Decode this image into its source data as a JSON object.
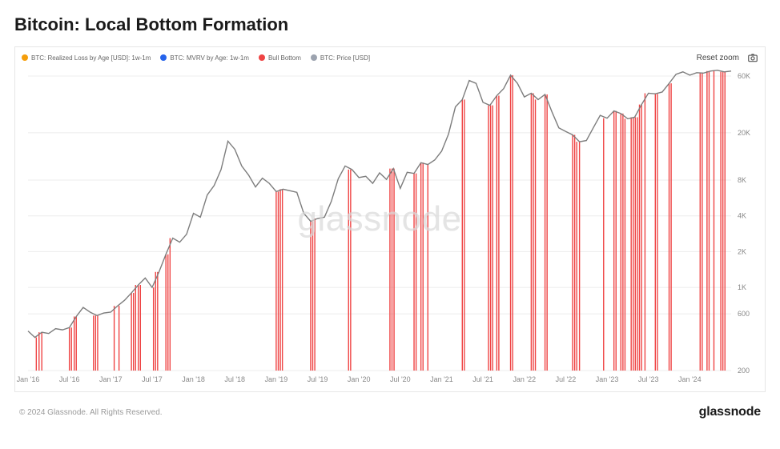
{
  "title": "Bitcoin: Local Bottom Formation",
  "watermark": "glassnode",
  "reset_zoom": "Reset zoom",
  "copyright": "© 2024 Glassnode. All Rights Reserved.",
  "brand": "glassnode",
  "legend": [
    {
      "color": "#f59e0b",
      "label": "BTC: Realized Loss by Age [USD]: 1w-1m"
    },
    {
      "color": "#2563eb",
      "label": "BTC: MVRV by Age: 1w-1m"
    },
    {
      "color": "#ef4444",
      "label": "Bull Bottom"
    },
    {
      "color": "#9ca3af",
      "label": "BTC: Price [USD]"
    }
  ],
  "chart": {
    "type": "line+bars",
    "background_color": "#ffffff",
    "grid_color": "#ececec",
    "price_line_color": "#7d7d7d",
    "bull_bar_color": "#ef4444",
    "x_domain": [
      0,
      102
    ],
    "y_scale": "log",
    "y_domain": [
      200,
      70000
    ],
    "y_ticks": [
      200,
      600,
      1000,
      2000,
      4000,
      8000,
      20000,
      60000
    ],
    "y_tick_labels": [
      "200",
      "600",
      "1K",
      "2K",
      "4K",
      "8K",
      "20K",
      "60K"
    ],
    "x_ticks": [
      0,
      6,
      12,
      18,
      24,
      30,
      36,
      42,
      48,
      54,
      60,
      66,
      72,
      78,
      84,
      90,
      96,
      102
    ],
    "x_tick_labels": [
      "Jan '16",
      "Jul '16",
      "Jan '17",
      "Jul '17",
      "Jan '18",
      "Jul '18",
      "Jan '19",
      "Jul '19",
      "Jan '20",
      "Jul '20",
      "Jan '21",
      "Jul '21",
      "Jan '22",
      "Jul '22",
      "Jan '23",
      "Jul '23",
      "Jan '24",
      ""
    ],
    "price": [
      430,
      380,
      420,
      410,
      450,
      440,
      460,
      570,
      680,
      620,
      580,
      610,
      620,
      700,
      780,
      900,
      1050,
      1200,
      1000,
      1350,
      1900,
      2600,
      2400,
      2800,
      4200,
      3900,
      6000,
      7200,
      9800,
      17000,
      14500,
      10500,
      8800,
      7000,
      8300,
      7500,
      6400,
      6700,
      6500,
      6300,
      4200,
      3600,
      3800,
      3900,
      5300,
      8200,
      10500,
      9800,
      8400,
      8600,
      7500,
      9200,
      8100,
      10000,
      6800,
      9300,
      9100,
      11200,
      10800,
      11800,
      14000,
      19500,
      33000,
      38000,
      55000,
      52000,
      36000,
      34000,
      41000,
      47000,
      61000,
      52000,
      40000,
      43000,
      38000,
      42000,
      30000,
      22000,
      20500,
      19200,
      16800,
      17200,
      22000,
      28000,
      26500,
      30500,
      29000,
      26200,
      27000,
      34500,
      43000,
      42500,
      44000,
      52000,
      62000,
      65000,
      61000,
      64000,
      63500,
      66000,
      67000,
      65000,
      66000
    ],
    "bull_bottoms": [
      1.2,
      1.6,
      2.0,
      6.0,
      6.3,
      6.7,
      7.0,
      9.5,
      9.8,
      10.1,
      12.5,
      13.2,
      15.0,
      15.3,
      15.6,
      16.0,
      16.3,
      18.2,
      18.5,
      18.8,
      20.0,
      20.3,
      20.6,
      36.0,
      36.3,
      36.6,
      36.9,
      41.0,
      41.3,
      41.6,
      46.5,
      46.8,
      52.5,
      52.8,
      53.1,
      56.0,
      56.3,
      57.0,
      57.3,
      58.0,
      63.0,
      63.3,
      66.8,
      67.1,
      67.4,
      68.0,
      68.3,
      70.0,
      70.3,
      73.0,
      73.3,
      73.6,
      75.0,
      75.3,
      79.0,
      79.3,
      79.6,
      80.0,
      83.5,
      85.0,
      85.3,
      86.0,
      86.3,
      86.6,
      87.5,
      87.8,
      88.1,
      88.4,
      88.7,
      89.0,
      89.5,
      91.0,
      91.3,
      93.0,
      93.3,
      97.5,
      97.8,
      98.5,
      98.8,
      99.5,
      100.5,
      100.8,
      101.1
    ],
    "axis_fontsize": 9,
    "axis_color": "#888888",
    "title_fontsize": 22,
    "title_weight": 700
  }
}
